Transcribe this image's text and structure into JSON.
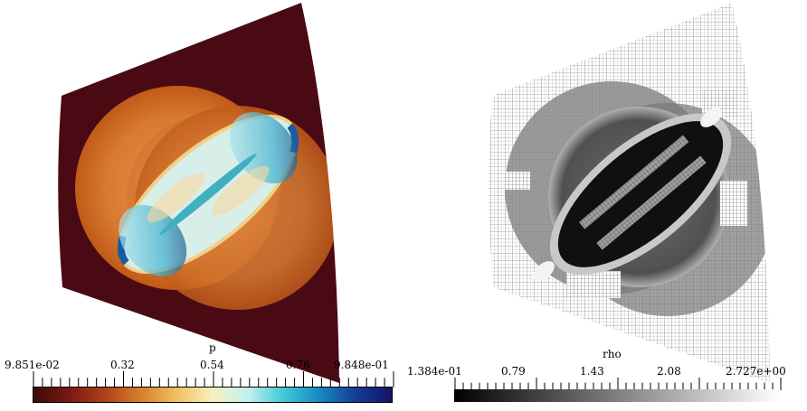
{
  "left_panel": {
    "colorbar": {
      "title": "p",
      "tick_labels": [
        "9.851e-02",
        "0.32",
        "0.54",
        "0.76",
        "9.848e-01"
      ],
      "gradient": [
        "#3a0a0a",
        "#7a1a12",
        "#b0401a",
        "#d8802a",
        "#f0c060",
        "#f8f0c0",
        "#c0f0f0",
        "#40c8d8",
        "#1888c0",
        "#143c94",
        "#141466"
      ]
    }
  },
  "right_panel": {
    "colorbar": {
      "title": "rho",
      "tick_labels": [
        "1.384e-01",
        "0.79",
        "1.43",
        "2.08",
        "2.727e+00"
      ],
      "gradient": [
        "#000000",
        "#ffffff"
      ]
    }
  }
}
